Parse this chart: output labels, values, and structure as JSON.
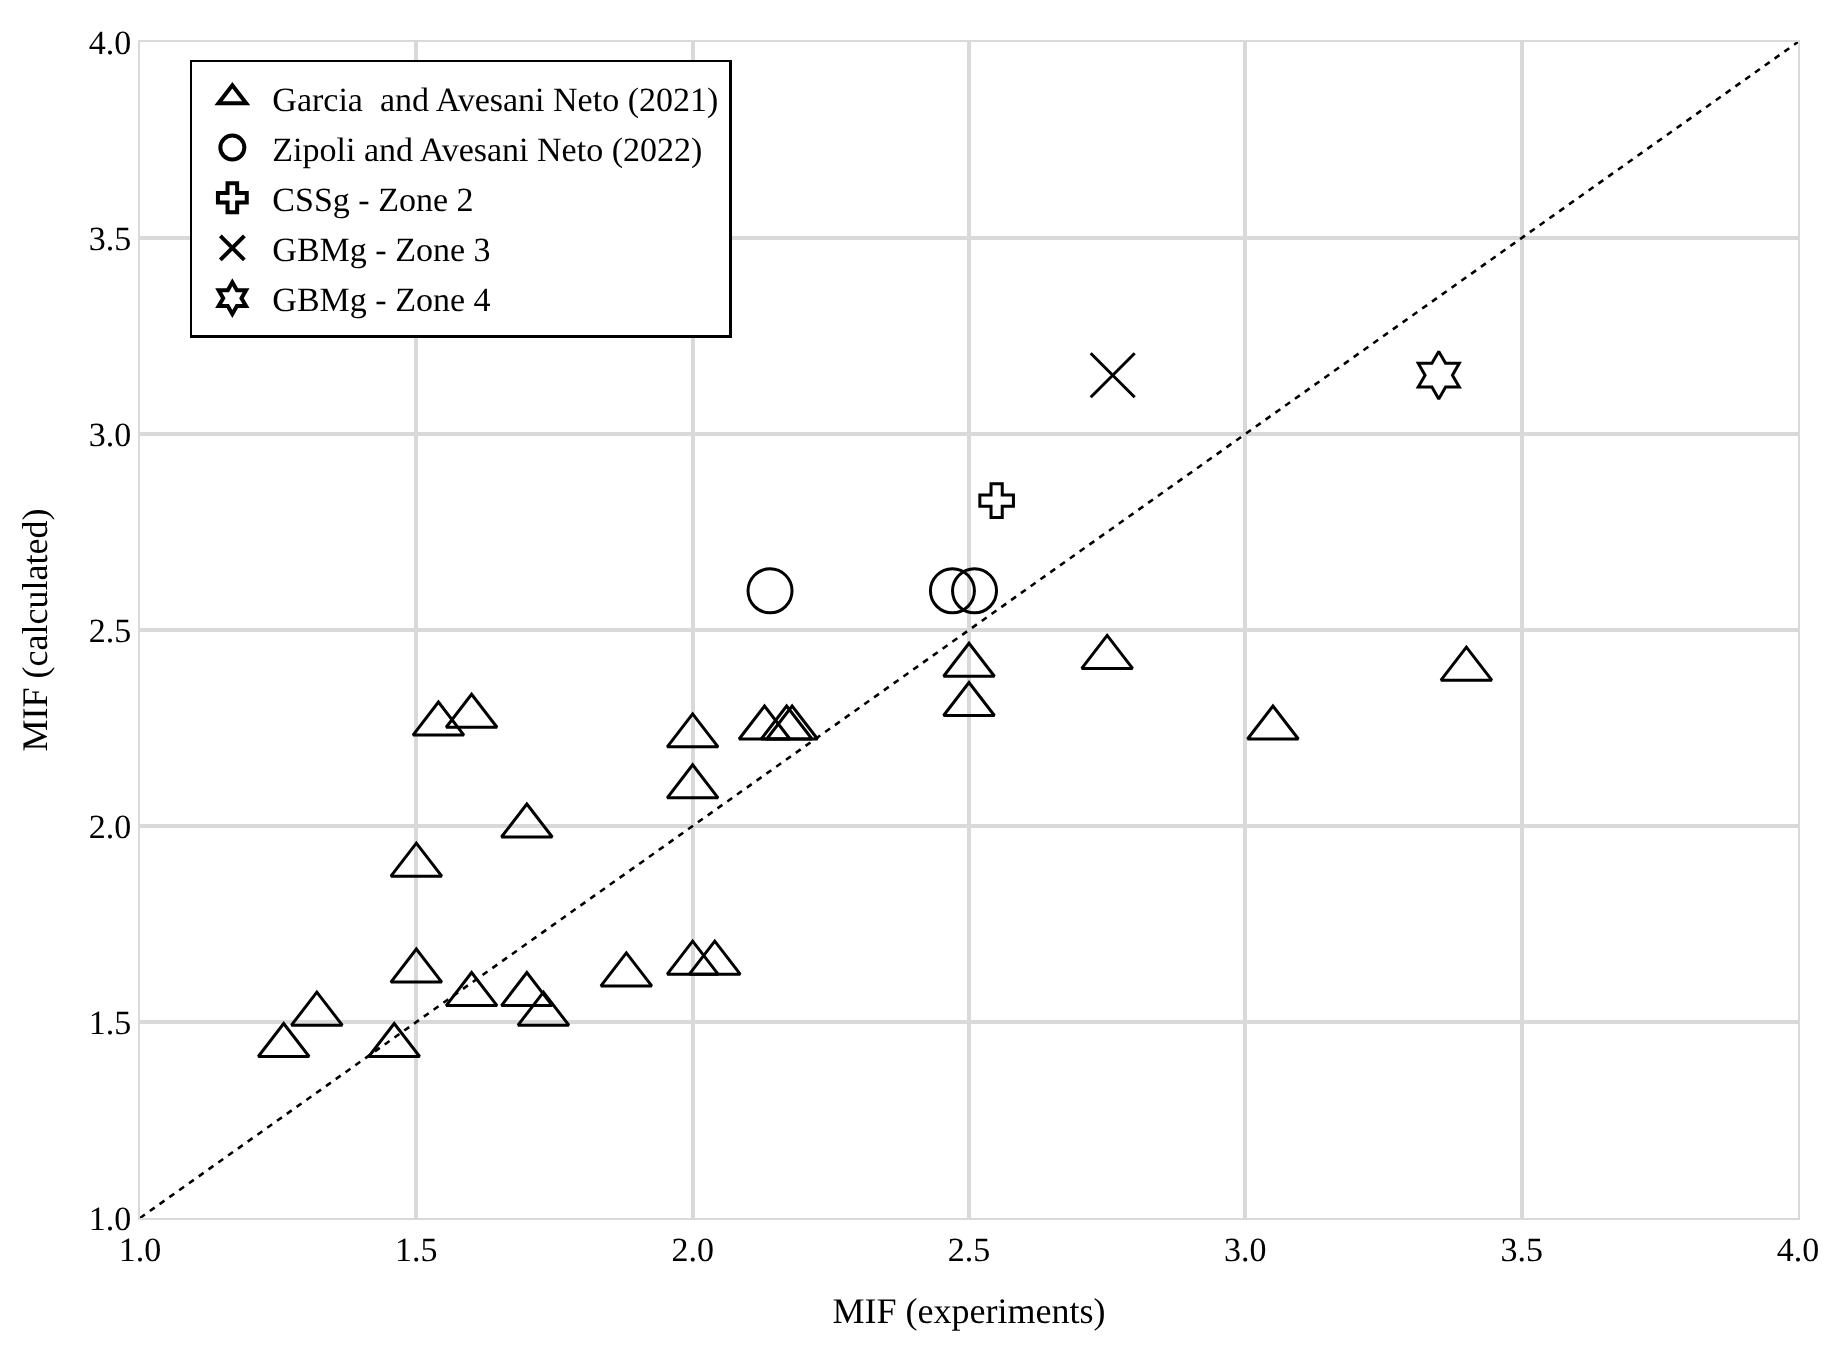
{
  "chart_data": {
    "type": "scatter",
    "xlabel": "MIF (experiments)",
    "ylabel": "MIF (calculated)",
    "xlim": [
      1.0,
      4.0
    ],
    "ylim": [
      1.0,
      4.0
    ],
    "xticks": [
      {
        "value": 1.0,
        "label": "1.0"
      },
      {
        "value": 1.5,
        "label": "1.5"
      },
      {
        "value": 2.0,
        "label": "2.0"
      },
      {
        "value": 2.5,
        "label": "2.5"
      },
      {
        "value": 3.0,
        "label": "3.0"
      },
      {
        "value": 3.5,
        "label": "3.5"
      },
      {
        "value": 4.0,
        "label": "4.0"
      }
    ],
    "yticks": [
      {
        "value": 1.0,
        "label": "1.0"
      },
      {
        "value": 1.5,
        "label": "1.5"
      },
      {
        "value": 2.0,
        "label": "2.0"
      },
      {
        "value": 2.5,
        "label": "2.5"
      },
      {
        "value": 3.0,
        "label": "3.0"
      },
      {
        "value": 3.5,
        "label": "3.5"
      },
      {
        "value": 4.0,
        "label": "4.0"
      }
    ],
    "grid": true,
    "legend": "top left",
    "series": [
      {
        "name": "Garcia  and Avesani Neto (2021)",
        "color": "#000000",
        "marker": "triangle",
        "x": [
          1.26,
          1.32,
          1.46,
          1.5,
          1.5,
          1.54,
          1.6,
          1.7,
          1.6,
          1.7,
          1.73,
          1.88,
          2.0,
          2.04,
          2.0,
          2.0,
          2.13,
          2.17,
          2.18,
          2.5,
          2.5,
          2.75,
          3.05,
          3.4
        ],
        "values": [
          1.44,
          1.52,
          1.44,
          1.63,
          1.9,
          2.26,
          2.28,
          2.0,
          1.57,
          1.57,
          1.52,
          1.62,
          1.65,
          1.65,
          2.23,
          2.1,
          2.25,
          2.25,
          2.25,
          2.41,
          2.31,
          2.43,
          2.25,
          2.4
        ]
      },
      {
        "name": "Zipoli and Avesani Neto (2022)",
        "color": "#000000",
        "marker": "circle",
        "x": [
          2.14,
          2.47,
          2.51
        ],
        "values": [
          2.6,
          2.6,
          2.6
        ]
      },
      {
        "name": "CSSg - Zone 2",
        "color": "#000000",
        "marker": "cross",
        "x": [
          2.55
        ],
        "values": [
          2.83
        ]
      },
      {
        "name": "GBMg - Zone 3",
        "color": "#000000",
        "marker": "x",
        "x": [
          2.76
        ],
        "values": [
          3.15
        ]
      },
      {
        "name": "GBMg - Zone 4",
        "color": "#000000",
        "x": [
          3.35
        ],
        "values": [
          3.15
        ]
      },
      {
        "type": "line",
        "color": "#000000",
        "line_style": "dotted",
        "marker": "none",
        "x": [
          1.0,
          4.0
        ],
        "values": [
          1.0,
          4.0
        ]
      }
    ]
  }
}
